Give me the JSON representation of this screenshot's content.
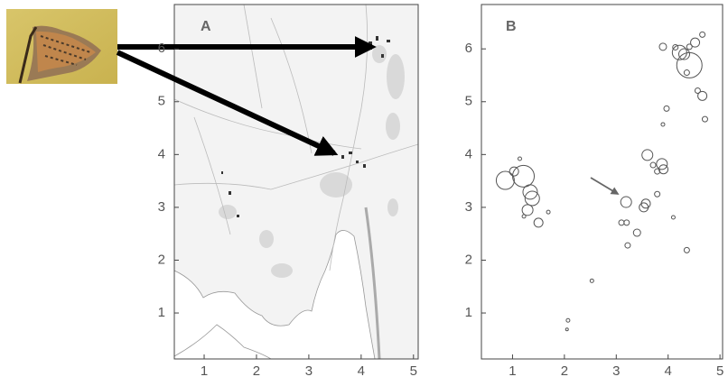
{
  "chart_data": [
    {
      "type": "map",
      "label": "A",
      "xlim": [
        0.43,
        5.09
      ],
      "ylim": [
        0.13,
        6.84
      ],
      "xticks": [
        1,
        2,
        3,
        4,
        5
      ],
      "yticks": [
        1,
        2,
        3,
        4,
        5,
        6
      ]
    },
    {
      "type": "scatter",
      "label": "B",
      "xlim": [
        0.4,
        5.05
      ],
      "ylim": [
        0.13,
        6.84
      ],
      "xticks": [
        1,
        2,
        3,
        4,
        5
      ],
      "yticks": [
        1,
        2,
        3,
        4,
        5,
        6
      ],
      "color": "#555555",
      "x": [
        0.86,
        1.21,
        1.03,
        1.14,
        1.34,
        1.38,
        1.29,
        1.5,
        1.22,
        1.69,
        3.19,
        3.1,
        3.2,
        3.22,
        3.4,
        3.53,
        3.57,
        3.6,
        3.71,
        3.79,
        3.88,
        3.91,
        3.79,
        3.97,
        3.9,
        4.1,
        4.36,
        2.53,
        2.07,
        2.05,
        4.41,
        4.22,
        4.31,
        4.14,
        4.52,
        4.66,
        4.66,
        4.57,
        4.71,
        4.36,
        4.41,
        3.9
      ],
      "y": [
        3.51,
        3.59,
        3.68,
        3.92,
        3.29,
        3.17,
        2.95,
        2.71,
        2.83,
        2.91,
        3.1,
        2.71,
        2.71,
        2.28,
        2.52,
        3.0,
        3.07,
        3.99,
        3.8,
        3.25,
        3.82,
        3.72,
        3.68,
        4.87,
        4.57,
        2.81,
        2.19,
        1.61,
        0.86,
        0.69,
        5.69,
        5.93,
        5.9,
        6.03,
        6.12,
        5.11,
        6.27,
        5.21,
        4.67,
        5.55,
        6.04,
        6.04
      ],
      "sizes": [
        10,
        12,
        5,
        2,
        8,
        8,
        6,
        5,
        2,
        2,
        6,
        3,
        3,
        3,
        4,
        5,
        5,
        6,
        3,
        3,
        6,
        5,
        3,
        3,
        2,
        2,
        3,
        2,
        2,
        1.5,
        14,
        8,
        6,
        3,
        5,
        5,
        3,
        3,
        3,
        3,
        3,
        4
      ]
    }
  ]
}
